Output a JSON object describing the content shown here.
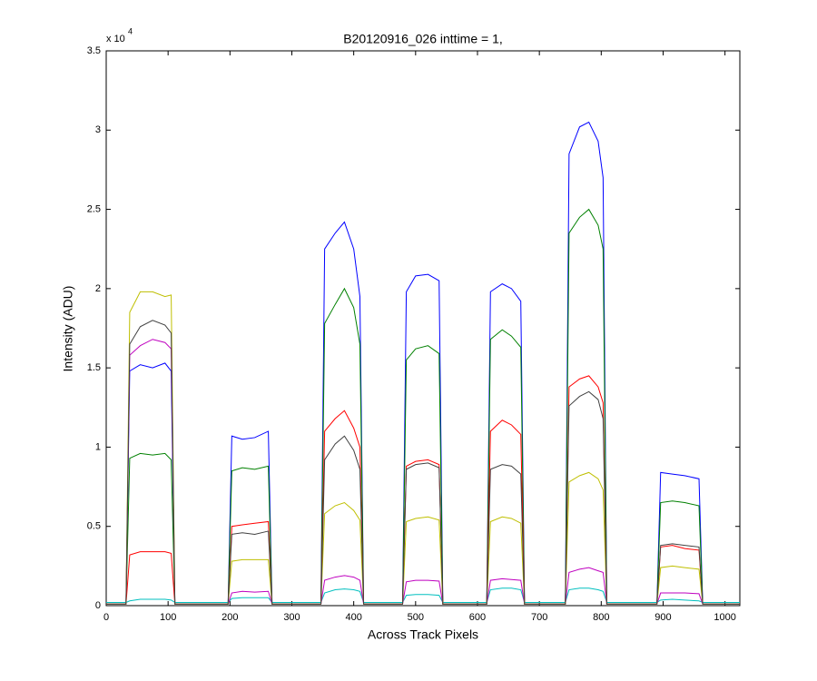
{
  "chart_data": {
    "type": "line",
    "title": "B20120916_026 inttime = 1,",
    "x_label": "Across Track Pixels",
    "y_label": "Intensity (ADU)",
    "y_multiplier": {
      "text": "x 10",
      "exponent": "4"
    },
    "xlim": [
      0,
      1024
    ],
    "ylim": [
      0,
      35000
    ],
    "xticks": [
      0,
      100,
      200,
      300,
      400,
      500,
      600,
      700,
      800,
      900,
      1000
    ],
    "yticks": [
      0,
      {
        "value": 5000,
        "label": "0.5"
      },
      {
        "value": 10000,
        "label": "1"
      },
      {
        "value": 15000,
        "label": "1.5"
      },
      {
        "value": 20000,
        "label": "2"
      },
      {
        "value": 25000,
        "label": "2.5"
      },
      {
        "value": 30000,
        "label": "3"
      },
      {
        "value": 35000,
        "label": "3.5"
      }
    ],
    "grid": false,
    "x": [
      0,
      32,
      38,
      55,
      75,
      95,
      105,
      111,
      197,
      203,
      220,
      240,
      262,
      268,
      347,
      353,
      370,
      385,
      400,
      410,
      416,
      479,
      485,
      500,
      520,
      538,
      544,
      615,
      621,
      640,
      655,
      670,
      676,
      742,
      748,
      765,
      780,
      795,
      803,
      809,
      890,
      896,
      915,
      935,
      958,
      964,
      1024
    ],
    "series": [
      {
        "color": "#0000ff",
        "values": [
          100,
          100,
          14800,
          15200,
          15000,
          15300,
          14800,
          100,
          100,
          10700,
          10500,
          10600,
          11000,
          100,
          100,
          22500,
          23500,
          24200,
          22500,
          19500,
          100,
          100,
          19800,
          20800,
          20900,
          20500,
          100,
          100,
          19800,
          20300,
          20000,
          19200,
          100,
          100,
          28500,
          30200,
          30500,
          29300,
          27000,
          100,
          100,
          8400,
          8300,
          8200,
          8000,
          100,
          100
        ]
      },
      {
        "color": "#008000",
        "values": [
          100,
          100,
          9300,
          9600,
          9500,
          9600,
          9200,
          100,
          100,
          8500,
          8700,
          8600,
          8800,
          100,
          100,
          17800,
          19000,
          20000,
          18800,
          16500,
          100,
          100,
          15500,
          16200,
          16400,
          15900,
          100,
          100,
          16800,
          17400,
          17000,
          16300,
          100,
          100,
          23500,
          24500,
          25000,
          24000,
          22500,
          100,
          100,
          6500,
          6600,
          6500,
          6300,
          100,
          100
        ]
      },
      {
        "color": "#ff0000",
        "values": [
          100,
          100,
          3200,
          3400,
          3400,
          3400,
          3300,
          100,
          100,
          5000,
          5100,
          5200,
          5300,
          100,
          100,
          11000,
          11800,
          12300,
          11200,
          10000,
          100,
          100,
          8800,
          9100,
          9200,
          8900,
          100,
          100,
          11000,
          11700,
          11400,
          10800,
          100,
          100,
          13800,
          14300,
          14500,
          13800,
          12800,
          100,
          100,
          3700,
          3800,
          3600,
          3500,
          100,
          100
        ]
      },
      {
        "color": "#00bfbf",
        "values": [
          200,
          200,
          300,
          400,
          400,
          400,
          350,
          200,
          200,
          450,
          500,
          500,
          500,
          200,
          200,
          800,
          1000,
          1050,
          1000,
          900,
          200,
          200,
          650,
          700,
          700,
          650,
          200,
          200,
          1000,
          1100,
          1100,
          1000,
          200,
          200,
          1000,
          1100,
          1100,
          1000,
          900,
          200,
          200,
          350,
          400,
          350,
          300,
          200,
          200
        ]
      },
      {
        "color": "#bf00bf",
        "values": [
          100,
          100,
          15800,
          16400,
          16800,
          16600,
          16200,
          100,
          100,
          800,
          900,
          850,
          900,
          100,
          100,
          1600,
          1800,
          1900,
          1800,
          1600,
          100,
          100,
          1500,
          1600,
          1600,
          1550,
          100,
          100,
          1600,
          1700,
          1650,
          1600,
          100,
          100,
          2100,
          2300,
          2400,
          2200,
          2100,
          100,
          100,
          800,
          800,
          800,
          750,
          100,
          100
        ]
      },
      {
        "color": "#bfbf00",
        "values": [
          100,
          100,
          18500,
          19800,
          19800,
          19500,
          19600,
          100,
          100,
          2800,
          2900,
          2900,
          2900,
          100,
          100,
          5800,
          6300,
          6500,
          6000,
          5400,
          100,
          100,
          5300,
          5500,
          5600,
          5400,
          100,
          100,
          5300,
          5600,
          5500,
          5200,
          100,
          100,
          7800,
          8200,
          8400,
          8000,
          7300,
          100,
          100,
          2400,
          2500,
          2400,
          2300,
          100,
          100
        ]
      },
      {
        "color": "#404040",
        "values": [
          100,
          100,
          16500,
          17600,
          18000,
          17700,
          17200,
          100,
          100,
          4500,
          4600,
          4500,
          4700,
          100,
          100,
          9200,
          10200,
          10700,
          9800,
          8600,
          100,
          100,
          8600,
          8900,
          9000,
          8700,
          100,
          100,
          8600,
          8900,
          8800,
          8300,
          100,
          100,
          12600,
          13200,
          13500,
          13000,
          11800,
          100,
          100,
          3800,
          3900,
          3800,
          3700,
          100,
          100
        ]
      }
    ]
  }
}
